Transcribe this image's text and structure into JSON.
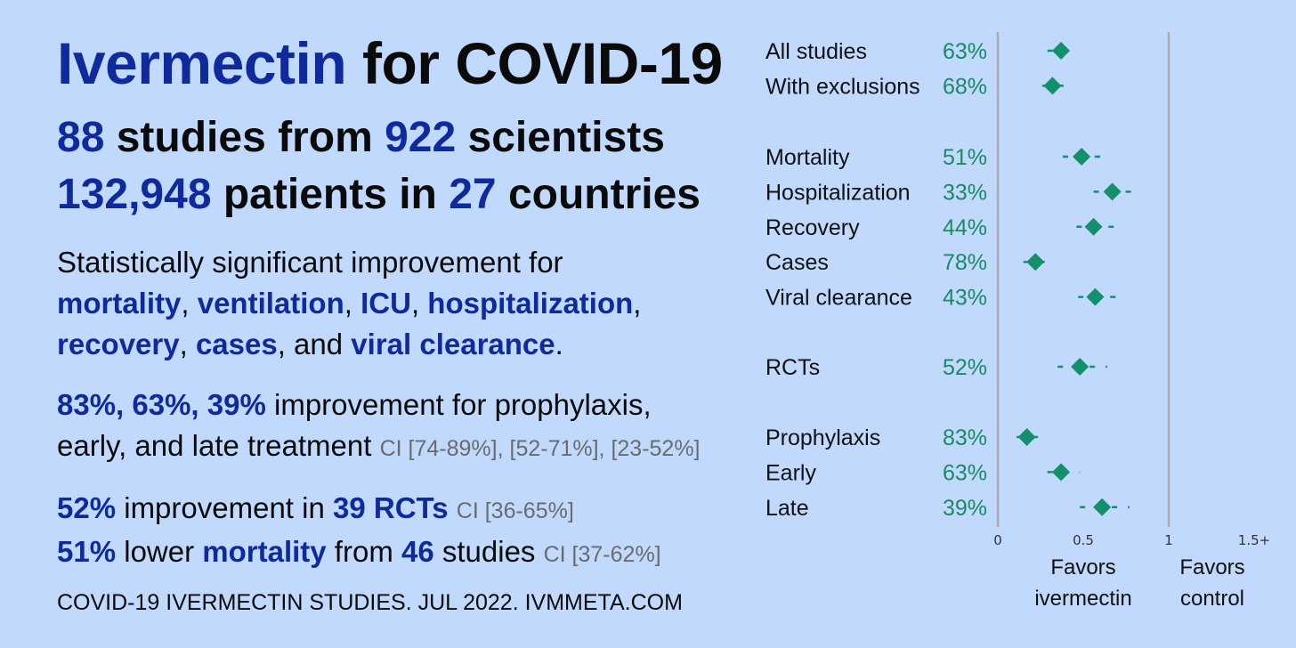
{
  "title": {
    "highlight": "Ivermectin",
    "rest": " for COVID-19"
  },
  "stats": {
    "studies_count": "88",
    "studies_text": " studies from ",
    "scientists_count": "922",
    "scientists_text": " scientists",
    "patients_count": "132,948",
    "patients_text": " patients in ",
    "countries_count": "27",
    "countries_text": " countries"
  },
  "significance": {
    "intro": "Statistically significant improvement for",
    "outcomes": [
      "mortality",
      "ventilation",
      "ICU",
      "hospitalization",
      "recovery",
      "cases",
      "viral clearance"
    ],
    "sep": ", ",
    "and_text": ", and ",
    "end": "."
  },
  "treatment": {
    "values": "83%, 63%, 39%",
    "text1": " improvement for prophylaxis,",
    "text2": "early, and late treatment ",
    "ci": "CI [74-89%], [52-71%], [23-52%]"
  },
  "rct": {
    "pct": "52%",
    "text": " improvement in ",
    "count": "39 RCTs",
    "ci": "CI [36-65%]"
  },
  "mortality": {
    "pct": "51%",
    "text1": " lower ",
    "word": "mortality",
    "text2": " from ",
    "count": "46",
    "text3": " studies ",
    "ci": "CI [37-62%]"
  },
  "footer": "COVID-19 IVERMECTIN STUDIES. JUL 2022. IVMMETA.COM",
  "colors": {
    "background": "#c0d9fd",
    "accent_blue": "#0e2a9c",
    "marker_green": "#13906a",
    "pct_green": "#1a8a64",
    "ci_gray": "#6b6b6b"
  },
  "chart_data": {
    "type": "forest",
    "x_ticks": [
      "0",
      "0.5",
      "1",
      "1.5+"
    ],
    "xlim": [
      0,
      1.5
    ],
    "reference_lines": [
      0,
      1
    ],
    "favors_left": [
      "Favors",
      "ivermectin"
    ],
    "favors_right": [
      "Favors",
      "control"
    ],
    "rows": [
      {
        "label": "All studies",
        "pct": "63%",
        "rr": 0.37,
        "lo": 0.29,
        "hi": 0.45,
        "group": 0
      },
      {
        "label": "With exclusions",
        "pct": "68%",
        "rr": 0.32,
        "lo": 0.26,
        "hi": 0.39,
        "group": 0
      },
      {
        "label": "Mortality",
        "pct": "51%",
        "rr": 0.49,
        "lo": 0.38,
        "hi": 0.63,
        "group": 1
      },
      {
        "label": "Hospitalization",
        "pct": "33%",
        "rr": 0.67,
        "lo": 0.56,
        "hi": 0.8,
        "group": 1
      },
      {
        "label": "Recovery",
        "pct": "44%",
        "rr": 0.56,
        "lo": 0.46,
        "hi": 0.69,
        "group": 1
      },
      {
        "label": "Cases",
        "pct": "78%",
        "rr": 0.22,
        "lo": 0.15,
        "hi": 0.32,
        "group": 1
      },
      {
        "label": "Viral clearance",
        "pct": "43%",
        "rr": 0.57,
        "lo": 0.47,
        "hi": 0.7,
        "group": 1
      },
      {
        "label": "RCTs",
        "pct": "52%",
        "rr": 0.48,
        "lo": 0.35,
        "hi": 0.64,
        "group": 2
      },
      {
        "label": "Prophylaxis",
        "pct": "83%",
        "rr": 0.17,
        "lo": 0.11,
        "hi": 0.26,
        "group": 3
      },
      {
        "label": "Early",
        "pct": "63%",
        "rr": 0.37,
        "lo": 0.29,
        "hi": 0.48,
        "group": 3
      },
      {
        "label": "Late",
        "pct": "39%",
        "rr": 0.61,
        "lo": 0.48,
        "hi": 0.77,
        "group": 3
      }
    ]
  }
}
